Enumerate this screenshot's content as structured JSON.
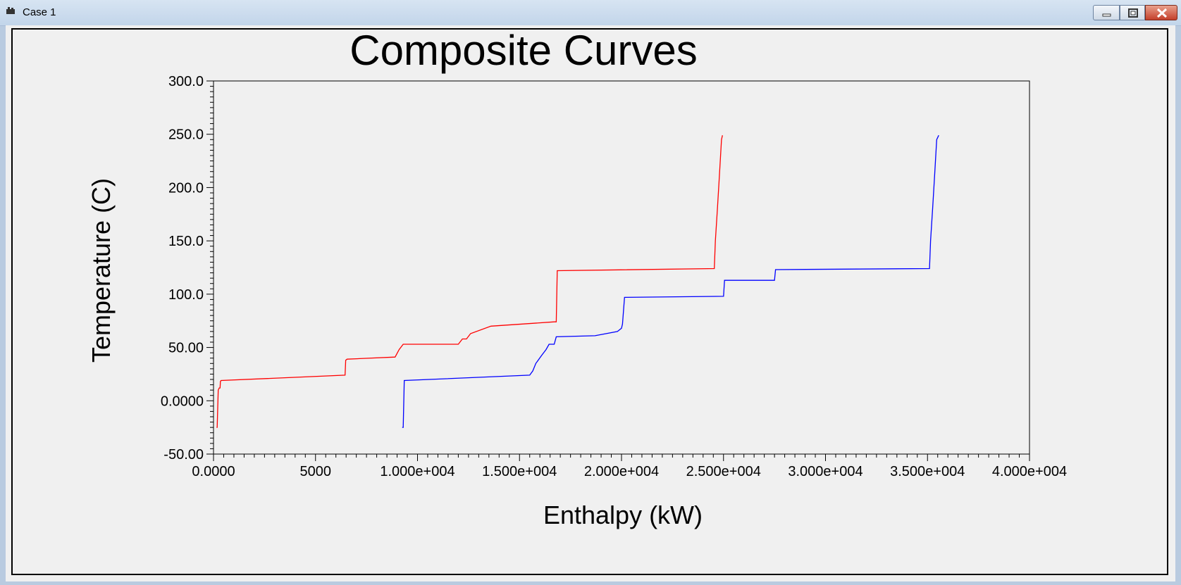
{
  "window": {
    "title": "Case 1",
    "buttons": [
      "minimize",
      "restore",
      "close"
    ]
  },
  "chart_data": {
    "type": "line",
    "title": "Composite Curves",
    "xlabel": "Enthalpy (kW)",
    "ylabel": "Temperature (C)",
    "xlim": [
      0,
      40000
    ],
    "ylim": [
      -50,
      300
    ],
    "x_tick_values": [
      0,
      5000,
      10000,
      15000,
      20000,
      25000,
      30000,
      35000,
      40000
    ],
    "x_tick_labels": [
      "0.0000",
      "5000",
      "1.000e+004",
      "1.500e+004",
      "2.000e+004",
      "2.500e+004",
      "3.000e+004",
      "3.500e+004",
      "4.000e+004"
    ],
    "y_tick_values": [
      -50,
      0,
      50,
      100,
      150,
      200,
      250,
      300
    ],
    "y_tick_labels": [
      "-50.00",
      "0.0000",
      "50.00",
      "100.0",
      "150.0",
      "200.0",
      "250.0",
      "300.0"
    ],
    "grid": false,
    "series": [
      {
        "color": "#ff0000",
        "x": [
          150,
          180,
          230,
          280,
          320,
          340,
          370,
          6450,
          6480,
          6550,
          8900,
          9100,
          9300,
          12000,
          12200,
          12400,
          12600,
          13600,
          16700,
          16800,
          16850,
          24550,
          24600,
          24700,
          24800,
          24900,
          24950
        ],
        "y": [
          -25,
          -25,
          10,
          12,
          12,
          18,
          19,
          24,
          38,
          39,
          41,
          48,
          53,
          53,
          58,
          58,
          63,
          70,
          74,
          74,
          122,
          124,
          150,
          180,
          212,
          245,
          249
        ]
      },
      {
        "color": "#0000ff",
        "x": [
          9250,
          9300,
          9350,
          15500,
          15650,
          15800,
          16100,
          16300,
          16450,
          16700,
          16800,
          18700,
          19800,
          20000,
          20050,
          20100,
          20150,
          25000,
          25050,
          27500,
          27550,
          35100,
          35150,
          35250,
          35350,
          35450,
          35550
        ],
        "y": [
          -25,
          -25,
          19,
          24,
          28,
          35,
          43,
          48,
          53,
          53,
          60,
          61,
          65,
          68,
          72,
          85,
          97,
          98,
          113,
          113,
          123,
          124,
          150,
          180,
          212,
          245,
          249
        ]
      }
    ]
  }
}
